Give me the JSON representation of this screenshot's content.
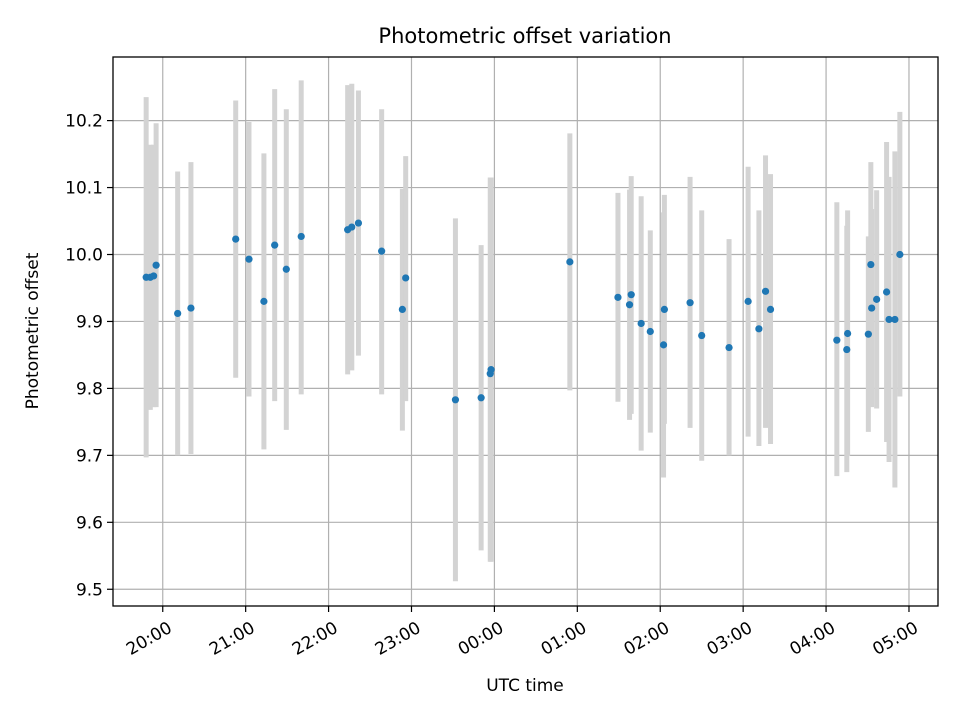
{
  "chart_data": {
    "type": "scatter",
    "title": "Photometric offset variation",
    "xlabel": "UTC time",
    "ylabel": "Photometric offset",
    "x_unit": "hours since 00:00 UTC (negative = previous day)",
    "xlim": [
      -4.6,
      5.35
    ],
    "ylim": [
      9.475,
      10.295
    ],
    "x_ticks": [
      {
        "value": -4,
        "label": "20:00"
      },
      {
        "value": -3,
        "label": "21:00"
      },
      {
        "value": -2,
        "label": "22:00"
      },
      {
        "value": -1,
        "label": "23:00"
      },
      {
        "value": 0,
        "label": "00:00"
      },
      {
        "value": 1,
        "label": "01:00"
      },
      {
        "value": 2,
        "label": "02:00"
      },
      {
        "value": 3,
        "label": "03:00"
      },
      {
        "value": 4,
        "label": "04:00"
      },
      {
        "value": 5,
        "label": "05:00"
      }
    ],
    "y_ticks": [
      {
        "value": 9.5,
        "label": "9.5"
      },
      {
        "value": 9.6,
        "label": "9.6"
      },
      {
        "value": 9.7,
        "label": "9.7"
      },
      {
        "value": 9.8,
        "label": "9.8"
      },
      {
        "value": 9.9,
        "label": "9.9"
      },
      {
        "value": 10.0,
        "label": "10.0"
      },
      {
        "value": 10.1,
        "label": "10.1"
      },
      {
        "value": 10.2,
        "label": "10.2"
      }
    ],
    "grid": true,
    "marker_color": "#1f77b4",
    "errorbar_color": "#d3d3d3",
    "points": [
      {
        "x": -4.2,
        "y": 9.966,
        "low": 9.697,
        "high": 10.235
      },
      {
        "x": -4.15,
        "y": 9.966,
        "low": 9.768,
        "high": 10.164
      },
      {
        "x": -4.11,
        "y": 9.968,
        "low": 9.772,
        "high": 10.164
      },
      {
        "x": -4.08,
        "y": 9.984,
        "low": 9.772,
        "high": 10.196
      },
      {
        "x": -3.82,
        "y": 9.912,
        "low": 9.7,
        "high": 10.124
      },
      {
        "x": -3.66,
        "y": 9.92,
        "low": 9.702,
        "high": 10.138
      },
      {
        "x": -3.12,
        "y": 10.023,
        "low": 9.816,
        "high": 10.23
      },
      {
        "x": -2.96,
        "y": 9.993,
        "low": 9.788,
        "high": 10.198
      },
      {
        "x": -2.78,
        "y": 9.93,
        "low": 9.709,
        "high": 10.151
      },
      {
        "x": -2.65,
        "y": 10.014,
        "low": 9.781,
        "high": 10.247
      },
      {
        "x": -2.51,
        "y": 9.978,
        "low": 9.738,
        "high": 10.217
      },
      {
        "x": -2.33,
        "y": 10.027,
        "low": 9.791,
        "high": 10.26
      },
      {
        "x": -1.77,
        "y": 10.037,
        "low": 9.821,
        "high": 10.253
      },
      {
        "x": -1.72,
        "y": 10.041,
        "low": 9.827,
        "high": 10.255
      },
      {
        "x": -1.64,
        "y": 10.047,
        "low": 9.849,
        "high": 10.245
      },
      {
        "x": -1.36,
        "y": 10.005,
        "low": 9.791,
        "high": 10.217
      },
      {
        "x": -1.11,
        "y": 9.918,
        "low": 9.737,
        "high": 10.098
      },
      {
        "x": -1.07,
        "y": 9.965,
        "low": 9.781,
        "high": 10.147
      },
      {
        "x": -0.47,
        "y": 9.783,
        "low": 9.512,
        "high": 10.054
      },
      {
        "x": -0.16,
        "y": 9.786,
        "low": 9.558,
        "high": 10.014
      },
      {
        "x": -0.05,
        "y": 9.822,
        "low": 9.541,
        "high": 10.115
      },
      {
        "x": -0.04,
        "y": 9.828,
        "low": 9.541,
        "high": 10.115
      },
      {
        "x": 0.91,
        "y": 9.989,
        "low": 9.797,
        "high": 10.181
      },
      {
        "x": 1.49,
        "y": 9.936,
        "low": 9.78,
        "high": 10.092
      },
      {
        "x": 1.63,
        "y": 9.925,
        "low": 9.753,
        "high": 10.097
      },
      {
        "x": 1.65,
        "y": 9.94,
        "low": 9.762,
        "high": 10.117
      },
      {
        "x": 1.77,
        "y": 9.897,
        "low": 9.707,
        "high": 10.087
      },
      {
        "x": 1.88,
        "y": 9.885,
        "low": 9.734,
        "high": 10.036
      },
      {
        "x": 2.04,
        "y": 9.865,
        "low": 9.667,
        "high": 10.063
      },
      {
        "x": 2.05,
        "y": 9.918,
        "low": 9.747,
        "high": 10.089
      },
      {
        "x": 2.36,
        "y": 9.928,
        "low": 9.741,
        "high": 10.116
      },
      {
        "x": 2.5,
        "y": 9.879,
        "low": 9.692,
        "high": 10.066
      },
      {
        "x": 2.83,
        "y": 9.861,
        "low": 9.7,
        "high": 10.023
      },
      {
        "x": 3.06,
        "y": 9.93,
        "low": 9.728,
        "high": 10.131
      },
      {
        "x": 3.19,
        "y": 9.889,
        "low": 9.714,
        "high": 10.066
      },
      {
        "x": 3.27,
        "y": 9.945,
        "low": 9.741,
        "high": 10.148
      },
      {
        "x": 3.33,
        "y": 9.918,
        "low": 9.717,
        "high": 10.12
      },
      {
        "x": 4.13,
        "y": 9.872,
        "low": 9.669,
        "high": 10.078
      },
      {
        "x": 4.25,
        "y": 9.858,
        "low": 9.675,
        "high": 10.043
      },
      {
        "x": 4.26,
        "y": 9.882,
        "low": 9.699,
        "high": 10.066
      },
      {
        "x": 4.51,
        "y": 9.881,
        "low": 9.735,
        "high": 10.027
      },
      {
        "x": 4.54,
        "y": 9.985,
        "low": 9.832,
        "high": 10.138
      },
      {
        "x": 4.55,
        "y": 9.92,
        "low": 9.772,
        "high": 10.068
      },
      {
        "x": 4.61,
        "y": 9.933,
        "low": 9.77,
        "high": 10.096
      },
      {
        "x": 4.73,
        "y": 9.944,
        "low": 9.72,
        "high": 10.168
      },
      {
        "x": 4.76,
        "y": 9.903,
        "low": 9.69,
        "high": 10.116
      },
      {
        "x": 4.83,
        "y": 9.903,
        "low": 9.652,
        "high": 10.154
      },
      {
        "x": 4.89,
        "y": 10.0,
        "low": 9.788,
        "high": 10.213
      }
    ]
  }
}
